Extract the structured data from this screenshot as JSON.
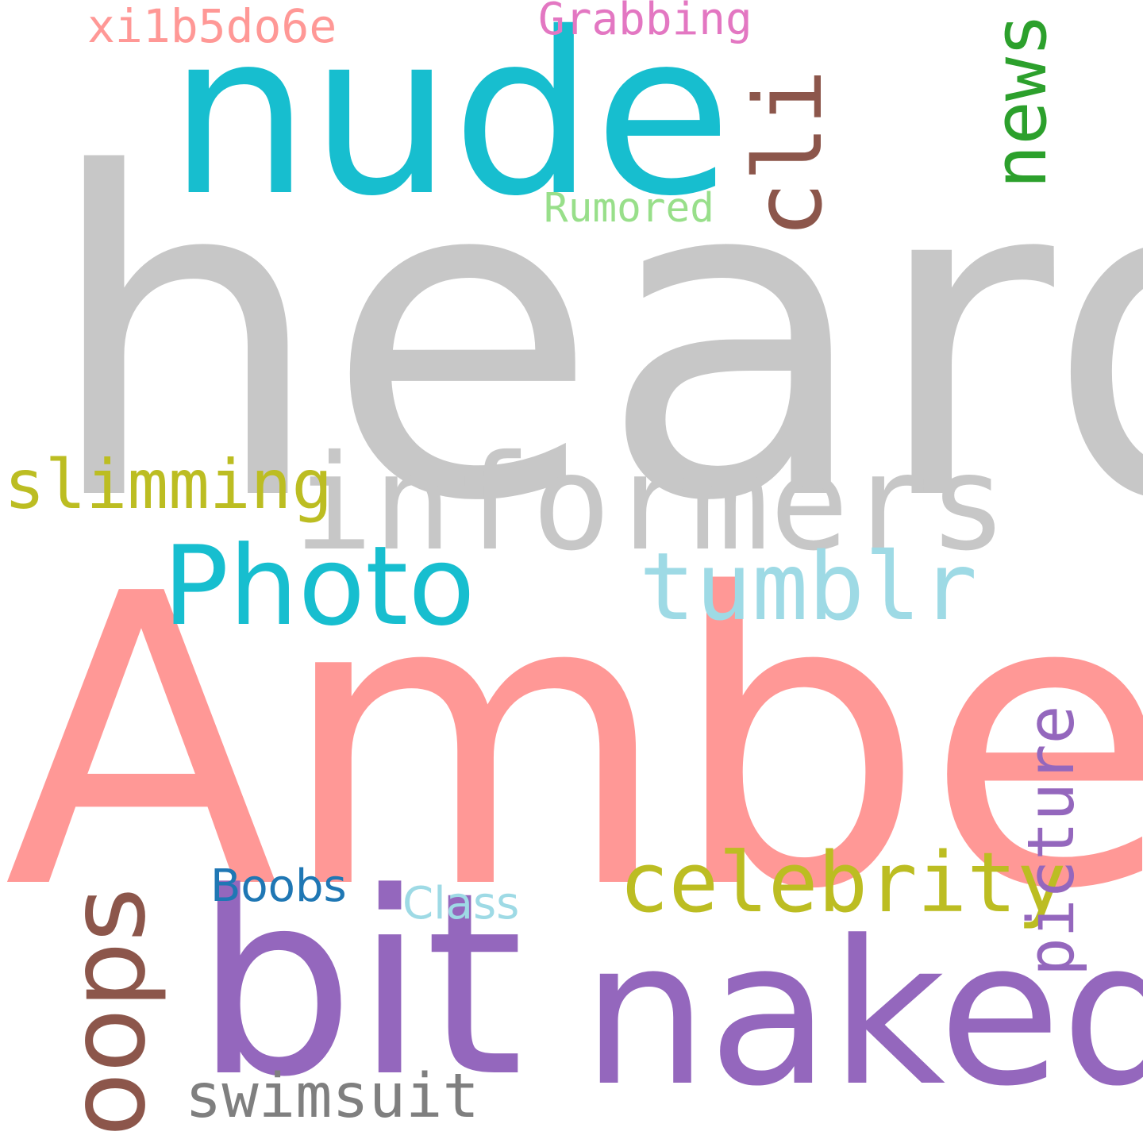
{
  "words": {
    "heard": {
      "text": "heard",
      "color": "#c7c7c7"
    },
    "amber": {
      "text": "Amber",
      "color": "#ff9896"
    },
    "nude": {
      "text": "nude",
      "color": "#17becf"
    },
    "informers": {
      "text": "informers",
      "color": "#c7c7c7"
    },
    "bit": {
      "text": "bit",
      "color": "#9467bd"
    },
    "naked": {
      "text": "naked",
      "color": "#9467bd"
    },
    "photo": {
      "text": "Photo",
      "color": "#17becf"
    },
    "tumblr": {
      "text": "tumblr",
      "color": "#9edae5"
    },
    "celebrity": {
      "text": "celebrity",
      "color": "#bcbd22"
    },
    "slimming": {
      "text": "slimming",
      "color": "#bcbd22"
    },
    "cli": {
      "text": "cli",
      "color": "#8c564b"
    },
    "news": {
      "text": "news",
      "color": "#2ca02c"
    },
    "oops": {
      "text": "oops",
      "color": "#8c564b"
    },
    "picture": {
      "text": "picture",
      "color": "#9467bd"
    },
    "swimsuit": {
      "text": "swimsuit",
      "color": "#7f7f7f"
    },
    "rumored": {
      "text": "Rumored",
      "color": "#98df8a"
    },
    "grabbing": {
      "text": "Grabbing",
      "color": "#e377c2"
    },
    "xi1b5do6e": {
      "text": "xi1b5do6e",
      "color": "#ff9896"
    },
    "boobs": {
      "text": "Boobs",
      "color": "#1f77b4"
    },
    "class": {
      "text": "Class",
      "color": "#9edae5"
    }
  }
}
